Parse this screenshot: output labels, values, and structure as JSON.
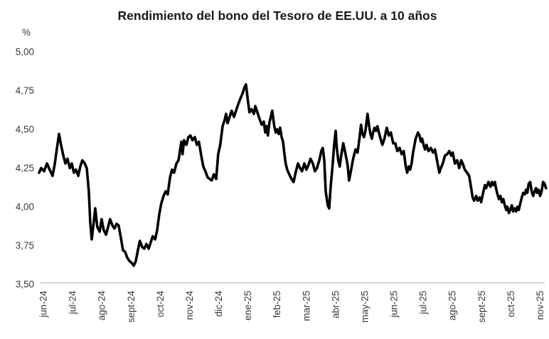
{
  "chart_data": {
    "type": "line",
    "title": "Rendimiento del bono del Tesoro de EE.UU. a 10 años",
    "y_unit_label": "%",
    "ylabel": "",
    "xlabel": "",
    "ylim": [
      3.5,
      5.0
    ],
    "y_tick_labels": [
      "5,00",
      "4,75",
      "4,50",
      "4,25",
      "4,00",
      "3,75",
      "3,50"
    ],
    "y_tick_values": [
      5.0,
      4.75,
      4.5,
      4.25,
      4.0,
      3.75,
      3.5
    ],
    "x_categories": [
      "jun-24",
      "jul-24",
      "ago-24",
      "sept-24",
      "oct-24",
      "nov-24",
      "dic-24",
      "ene-25",
      "feb-25",
      "mar-25",
      "abr-25",
      "may-25",
      "jun-25",
      "jul-25",
      "ago-25",
      "sept-25",
      "oct-25",
      "nov-25"
    ],
    "x_label_rotation_deg": 90,
    "x_unit": "months after the jun-24 tick (fractional, monthly ticks)",
    "grid": false,
    "legend_position": "none",
    "line_color": "#000000",
    "axis_line_color": "#bfbfbf",
    "series": [
      {
        "name": "Rendimiento del bono del Tesoro de EE.UU. a 10 años (%)",
        "points": [
          [
            -0.17,
            4.22
          ],
          [
            -0.1,
            4.25
          ],
          [
            0.0,
            4.23
          ],
          [
            0.1,
            4.28
          ],
          [
            0.19,
            4.24
          ],
          [
            0.29,
            4.2
          ],
          [
            0.36,
            4.27
          ],
          [
            0.44,
            4.38
          ],
          [
            0.51,
            4.47
          ],
          [
            0.58,
            4.4
          ],
          [
            0.66,
            4.33
          ],
          [
            0.73,
            4.28
          ],
          [
            0.8,
            4.31
          ],
          [
            0.88,
            4.25
          ],
          [
            0.95,
            4.28
          ],
          [
            1.02,
            4.22
          ],
          [
            1.09,
            4.24
          ],
          [
            1.17,
            4.2
          ],
          [
            1.24,
            4.26
          ],
          [
            1.31,
            4.3
          ],
          [
            1.39,
            4.28
          ],
          [
            1.46,
            4.25
          ],
          [
            1.53,
            4.1
          ],
          [
            1.58,
            3.9
          ],
          [
            1.63,
            3.79
          ],
          [
            1.7,
            3.9
          ],
          [
            1.75,
            3.99
          ],
          [
            1.82,
            3.87
          ],
          [
            1.9,
            3.84
          ],
          [
            1.97,
            3.92
          ],
          [
            2.04,
            3.85
          ],
          [
            2.12,
            3.82
          ],
          [
            2.19,
            3.87
          ],
          [
            2.26,
            3.92
          ],
          [
            2.34,
            3.88
          ],
          [
            2.41,
            3.86
          ],
          [
            2.48,
            3.89
          ],
          [
            2.55,
            3.88
          ],
          [
            2.63,
            3.8
          ],
          [
            2.7,
            3.72
          ],
          [
            2.77,
            3.71
          ],
          [
            2.85,
            3.67
          ],
          [
            2.92,
            3.65
          ],
          [
            2.99,
            3.64
          ],
          [
            3.07,
            3.62
          ],
          [
            3.14,
            3.65
          ],
          [
            3.21,
            3.72
          ],
          [
            3.28,
            3.78
          ],
          [
            3.36,
            3.74
          ],
          [
            3.43,
            3.73
          ],
          [
            3.5,
            3.76
          ],
          [
            3.58,
            3.73
          ],
          [
            3.65,
            3.77
          ],
          [
            3.72,
            3.81
          ],
          [
            3.8,
            3.79
          ],
          [
            3.87,
            3.85
          ],
          [
            3.94,
            3.95
          ],
          [
            4.01,
            4.02
          ],
          [
            4.09,
            4.07
          ],
          [
            4.16,
            4.1
          ],
          [
            4.23,
            4.08
          ],
          [
            4.31,
            4.19
          ],
          [
            4.38,
            4.24
          ],
          [
            4.45,
            4.22
          ],
          [
            4.53,
            4.28
          ],
          [
            4.6,
            4.3
          ],
          [
            4.65,
            4.36
          ],
          [
            4.7,
            4.42
          ],
          [
            4.74,
            4.34
          ],
          [
            4.79,
            4.43
          ],
          [
            4.87,
            4.4
          ],
          [
            4.94,
            4.45
          ],
          [
            5.01,
            4.46
          ],
          [
            5.08,
            4.43
          ],
          [
            5.16,
            4.45
          ],
          [
            5.23,
            4.4
          ],
          [
            5.3,
            4.42
          ],
          [
            5.38,
            4.33
          ],
          [
            5.45,
            4.26
          ],
          [
            5.52,
            4.23
          ],
          [
            5.6,
            4.19
          ],
          [
            5.67,
            4.18
          ],
          [
            5.74,
            4.17
          ],
          [
            5.81,
            4.21
          ],
          [
            5.89,
            4.18
          ],
          [
            5.96,
            4.34
          ],
          [
            6.03,
            4.4
          ],
          [
            6.11,
            4.52
          ],
          [
            6.18,
            4.56
          ],
          [
            6.23,
            4.6
          ],
          [
            6.28,
            4.54
          ],
          [
            6.35,
            4.58
          ],
          [
            6.42,
            4.62
          ],
          [
            6.5,
            4.58
          ],
          [
            6.57,
            4.62
          ],
          [
            6.64,
            4.66
          ],
          [
            6.72,
            4.7
          ],
          [
            6.79,
            4.73
          ],
          [
            6.86,
            4.77
          ],
          [
            6.91,
            4.79
          ],
          [
            6.98,
            4.68
          ],
          [
            7.03,
            4.61
          ],
          [
            7.1,
            4.63
          ],
          [
            7.18,
            4.6
          ],
          [
            7.23,
            4.65
          ],
          [
            7.3,
            4.61
          ],
          [
            7.37,
            4.57
          ],
          [
            7.45,
            4.53
          ],
          [
            7.52,
            4.55
          ],
          [
            7.57,
            4.48
          ],
          [
            7.62,
            4.52
          ],
          [
            7.66,
            4.46
          ],
          [
            7.71,
            4.54
          ],
          [
            7.76,
            4.58
          ],
          [
            7.81,
            4.62
          ],
          [
            7.88,
            4.52
          ],
          [
            7.93,
            4.48
          ],
          [
            7.98,
            4.5
          ],
          [
            8.03,
            4.47
          ],
          [
            8.08,
            4.51
          ],
          [
            8.13,
            4.45
          ],
          [
            8.18,
            4.42
          ],
          [
            8.22,
            4.35
          ],
          [
            8.27,
            4.28
          ],
          [
            8.32,
            4.24
          ],
          [
            8.39,
            4.21
          ],
          [
            8.47,
            4.18
          ],
          [
            8.54,
            4.16
          ],
          [
            8.61,
            4.22
          ],
          [
            8.69,
            4.28
          ],
          [
            8.76,
            4.25
          ],
          [
            8.83,
            4.23
          ],
          [
            8.91,
            4.28
          ],
          [
            8.98,
            4.24
          ],
          [
            9.05,
            4.27
          ],
          [
            9.12,
            4.31
          ],
          [
            9.2,
            4.28
          ],
          [
            9.27,
            4.23
          ],
          [
            9.34,
            4.25
          ],
          [
            9.42,
            4.3
          ],
          [
            9.49,
            4.36
          ],
          [
            9.54,
            4.38
          ],
          [
            9.59,
            4.3
          ],
          [
            9.64,
            4.1
          ],
          [
            9.71,
            4.01
          ],
          [
            9.76,
            3.99
          ],
          [
            9.81,
            4.13
          ],
          [
            9.88,
            4.28
          ],
          [
            9.93,
            4.4
          ],
          [
            9.98,
            4.49
          ],
          [
            10.02,
            4.38
          ],
          [
            10.07,
            4.3
          ],
          [
            10.12,
            4.26
          ],
          [
            10.17,
            4.33
          ],
          [
            10.24,
            4.41
          ],
          [
            10.32,
            4.34
          ],
          [
            10.39,
            4.27
          ],
          [
            10.44,
            4.17
          ],
          [
            10.51,
            4.24
          ],
          [
            10.58,
            4.31
          ],
          [
            10.66,
            4.37
          ],
          [
            10.73,
            4.35
          ],
          [
            10.8,
            4.45
          ],
          [
            10.85,
            4.53
          ],
          [
            10.9,
            4.47
          ],
          [
            10.95,
            4.45
          ],
          [
            11.0,
            4.49
          ],
          [
            11.07,
            4.6
          ],
          [
            11.12,
            4.53
          ],
          [
            11.17,
            4.47
          ],
          [
            11.22,
            4.44
          ],
          [
            11.26,
            4.48
          ],
          [
            11.31,
            4.51
          ],
          [
            11.36,
            4.49
          ],
          [
            11.41,
            4.52
          ],
          [
            11.46,
            4.48
          ],
          [
            11.53,
            4.43
          ],
          [
            11.58,
            4.4
          ],
          [
            11.65,
            4.44
          ],
          [
            11.73,
            4.51
          ],
          [
            11.8,
            4.46
          ],
          [
            11.87,
            4.48
          ],
          [
            11.95,
            4.41
          ],
          [
            12.02,
            4.41
          ],
          [
            12.09,
            4.36
          ],
          [
            12.17,
            4.38
          ],
          [
            12.24,
            4.34
          ],
          [
            12.31,
            4.36
          ],
          [
            12.38,
            4.26
          ],
          [
            12.43,
            4.22
          ],
          [
            12.48,
            4.26
          ],
          [
            12.53,
            4.24
          ],
          [
            12.58,
            4.28
          ],
          [
            12.63,
            4.35
          ],
          [
            12.68,
            4.4
          ],
          [
            12.72,
            4.44
          ],
          [
            12.8,
            4.48
          ],
          [
            12.85,
            4.46
          ],
          [
            12.9,
            4.42
          ],
          [
            12.94,
            4.44
          ],
          [
            12.99,
            4.4
          ],
          [
            13.04,
            4.37
          ],
          [
            13.09,
            4.4
          ],
          [
            13.16,
            4.36
          ],
          [
            13.24,
            4.38
          ],
          [
            13.31,
            4.35
          ],
          [
            13.38,
            4.37
          ],
          [
            13.45,
            4.3
          ],
          [
            13.53,
            4.22
          ],
          [
            13.58,
            4.25
          ],
          [
            13.65,
            4.28
          ],
          [
            13.72,
            4.33
          ],
          [
            13.8,
            4.34
          ],
          [
            13.87,
            4.36
          ],
          [
            13.94,
            4.33
          ],
          [
            13.99,
            4.35
          ],
          [
            14.06,
            4.28
          ],
          [
            14.14,
            4.3
          ],
          [
            14.21,
            4.25
          ],
          [
            14.28,
            4.3
          ],
          [
            14.33,
            4.28
          ],
          [
            14.4,
            4.24
          ],
          [
            14.48,
            4.22
          ],
          [
            14.55,
            4.2
          ],
          [
            14.62,
            4.12
          ],
          [
            14.67,
            4.06
          ],
          [
            14.72,
            4.04
          ],
          [
            14.79,
            4.07
          ],
          [
            14.84,
            4.04
          ],
          [
            14.91,
            4.06
          ],
          [
            14.96,
            4.03
          ],
          [
            15.04,
            4.1
          ],
          [
            15.09,
            4.14
          ],
          [
            15.13,
            4.12
          ],
          [
            15.21,
            4.16
          ],
          [
            15.28,
            4.13
          ],
          [
            15.33,
            4.16
          ],
          [
            15.38,
            4.14
          ],
          [
            15.43,
            4.16
          ],
          [
            15.47,
            4.12
          ],
          [
            15.52,
            4.08
          ],
          [
            15.57,
            4.05
          ],
          [
            15.62,
            4.07
          ],
          [
            15.67,
            4.03
          ],
          [
            15.72,
            4.05
          ],
          [
            15.77,
            4.01
          ],
          [
            15.82,
            3.98
          ],
          [
            15.86,
            4.0
          ],
          [
            15.91,
            3.96
          ],
          [
            15.96,
            3.98
          ],
          [
            16.01,
            4.01
          ],
          [
            16.06,
            3.97
          ],
          [
            16.11,
            3.99
          ],
          [
            16.16,
            3.97
          ],
          [
            16.2,
            4.0
          ],
          [
            16.25,
            3.98
          ],
          [
            16.3,
            4.02
          ],
          [
            16.35,
            4.06
          ],
          [
            16.4,
            4.09
          ],
          [
            16.45,
            4.08
          ],
          [
            16.5,
            4.11
          ],
          [
            16.54,
            4.09
          ],
          [
            16.59,
            4.15
          ],
          [
            16.64,
            4.16
          ],
          [
            16.69,
            4.1
          ],
          [
            16.74,
            4.07
          ],
          [
            16.79,
            4.1
          ],
          [
            16.84,
            4.12
          ],
          [
            16.88,
            4.09
          ],
          [
            16.93,
            4.11
          ],
          [
            16.98,
            4.07
          ],
          [
            17.03,
            4.1
          ],
          [
            17.08,
            4.16
          ],
          [
            17.13,
            4.15
          ],
          [
            17.18,
            4.12
          ]
        ]
      }
    ]
  }
}
